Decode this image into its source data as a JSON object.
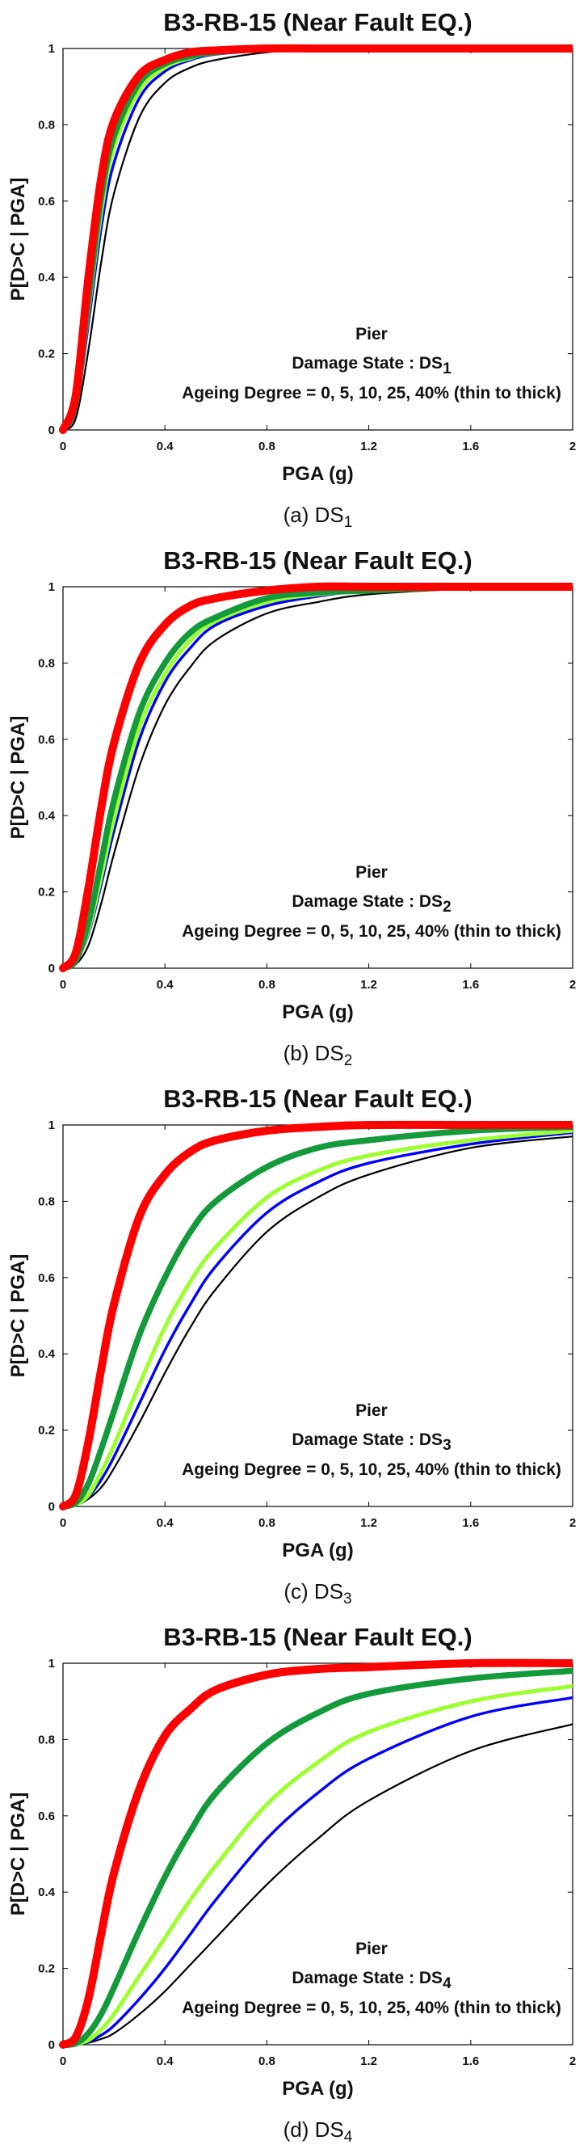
{
  "chart_data": [
    {
      "type": "line",
      "title": "B3-RB-15 (Near Fault EQ.)",
      "xlabel": "PGA (g)",
      "ylabel": "P[D>C | PGA]",
      "xlim": [
        0,
        2
      ],
      "ylim": [
        0,
        1
      ],
      "xticks": [
        "0",
        "0.4",
        "0.8",
        "1.2",
        "1.6",
        "2"
      ],
      "yticks": [
        "0",
        "0.2",
        "0.4",
        "0.6",
        "0.8",
        "1"
      ],
      "annotation": {
        "line1": "Pier",
        "line2": "Damage State : DS",
        "line2_sub": "1",
        "line3": "Ageing Degree = 0, 5, 10, 25, 40% (thin to thick)"
      },
      "caption": {
        "prefix": "(a) DS",
        "sub": "1"
      },
      "x": [
        0,
        0.05,
        0.1,
        0.15,
        0.2,
        0.3,
        0.4,
        0.5,
        0.6,
        0.8,
        1.0,
        1.2,
        1.6,
        2.0
      ],
      "series": [
        {
          "color": "#000000",
          "values": [
            0,
            0.03,
            0.21,
            0.44,
            0.62,
            0.82,
            0.91,
            0.95,
            0.97,
            0.99,
            1.0,
            1.0,
            1.0,
            1.0
          ]
        },
        {
          "color": "#0000ff",
          "values": [
            0,
            0.05,
            0.28,
            0.53,
            0.7,
            0.87,
            0.94,
            0.97,
            0.985,
            0.995,
            1.0,
            1.0,
            1.0,
            1.0
          ]
        },
        {
          "color": "#9cff2e",
          "values": [
            0,
            0.06,
            0.31,
            0.57,
            0.74,
            0.89,
            0.95,
            0.975,
            0.99,
            1.0,
            1.0,
            1.0,
            1.0,
            1.0
          ]
        },
        {
          "color": "#139a3b",
          "values": [
            0,
            0.07,
            0.34,
            0.61,
            0.77,
            0.91,
            0.96,
            0.98,
            0.99,
            1.0,
            1.0,
            1.0,
            1.0,
            1.0
          ]
        },
        {
          "color": "#ff0000",
          "values": [
            0,
            0.09,
            0.4,
            0.66,
            0.81,
            0.93,
            0.97,
            0.99,
            0.995,
            1.0,
            1.0,
            1.0,
            1.0,
            1.0
          ]
        }
      ]
    },
    {
      "type": "line",
      "title": "B3-RB-15 (Near Fault EQ.)",
      "xlabel": "PGA (g)",
      "ylabel": "P[D>C | PGA]",
      "xlim": [
        0,
        2
      ],
      "ylim": [
        0,
        1
      ],
      "xticks": [
        "0",
        "0.4",
        "0.8",
        "1.2",
        "1.6",
        "2"
      ],
      "yticks": [
        "0",
        "0.2",
        "0.4",
        "0.6",
        "0.8",
        "1"
      ],
      "annotation": {
        "line1": "Pier",
        "line2": "Damage State : DS",
        "line2_sub": "2",
        "line3": "Ageing Degree = 0, 5, 10, 25, 40% (thin to thick)"
      },
      "caption": {
        "prefix": "(b) DS",
        "sub": "2"
      },
      "x": [
        0,
        0.05,
        0.1,
        0.15,
        0.2,
        0.3,
        0.4,
        0.5,
        0.6,
        0.8,
        1.0,
        1.2,
        1.6,
        2.0
      ],
      "series": [
        {
          "color": "#000000",
          "values": [
            0,
            0.01,
            0.06,
            0.17,
            0.3,
            0.53,
            0.69,
            0.79,
            0.86,
            0.93,
            0.96,
            0.98,
            0.995,
            1.0
          ]
        },
        {
          "color": "#0000ff",
          "values": [
            0,
            0.02,
            0.09,
            0.22,
            0.36,
            0.6,
            0.75,
            0.84,
            0.9,
            0.95,
            0.975,
            0.99,
            1.0,
            1.0
          ]
        },
        {
          "color": "#9cff2e",
          "values": [
            0,
            0.02,
            0.1,
            0.24,
            0.39,
            0.63,
            0.77,
            0.86,
            0.91,
            0.96,
            0.98,
            0.99,
            1.0,
            1.0
          ]
        },
        {
          "color": "#139a3b",
          "values": [
            0,
            0.02,
            0.12,
            0.28,
            0.44,
            0.67,
            0.8,
            0.88,
            0.92,
            0.97,
            0.985,
            0.99,
            1.0,
            1.0
          ]
        },
        {
          "color": "#ff0000",
          "values": [
            0,
            0.04,
            0.21,
            0.42,
            0.59,
            0.8,
            0.9,
            0.95,
            0.97,
            0.99,
            1.0,
            1.0,
            1.0,
            1.0
          ]
        }
      ]
    },
    {
      "type": "line",
      "title": "B3-RB-15 (Near Fault EQ.)",
      "xlabel": "PGA (g)",
      "ylabel": "P[D>C | PGA]",
      "xlim": [
        0,
        2
      ],
      "ylim": [
        0,
        1
      ],
      "xticks": [
        "0",
        "0.4",
        "0.8",
        "1.2",
        "1.6",
        "2"
      ],
      "yticks": [
        "0",
        "0.2",
        "0.4",
        "0.6",
        "0.8",
        "1"
      ],
      "annotation": {
        "line1": "Pier",
        "line2": "Damage State : DS",
        "line2_sub": "3",
        "line3": "Ageing Degree = 0, 5, 10, 25, 40% (thin to thick)"
      },
      "caption": {
        "prefix": "(c) DS",
        "sub": "3"
      },
      "x": [
        0,
        0.05,
        0.1,
        0.15,
        0.2,
        0.3,
        0.4,
        0.5,
        0.6,
        0.8,
        1.0,
        1.2,
        1.6,
        2.0
      ],
      "series": [
        {
          "color": "#000000",
          "values": [
            0,
            0.003,
            0.02,
            0.05,
            0.1,
            0.22,
            0.35,
            0.47,
            0.57,
            0.72,
            0.81,
            0.87,
            0.94,
            0.97
          ]
        },
        {
          "color": "#0000ff",
          "values": [
            0,
            0.004,
            0.025,
            0.07,
            0.13,
            0.27,
            0.41,
            0.53,
            0.63,
            0.77,
            0.85,
            0.9,
            0.95,
            0.98
          ]
        },
        {
          "color": "#9cff2e",
          "values": [
            0,
            0.005,
            0.03,
            0.09,
            0.16,
            0.32,
            0.47,
            0.59,
            0.68,
            0.81,
            0.88,
            0.92,
            0.96,
            0.985
          ]
        },
        {
          "color": "#139a3b",
          "values": [
            0,
            0.01,
            0.06,
            0.15,
            0.25,
            0.45,
            0.6,
            0.72,
            0.8,
            0.89,
            0.94,
            0.96,
            0.985,
            0.995
          ]
        },
        {
          "color": "#ff0000",
          "values": [
            0,
            0.03,
            0.17,
            0.36,
            0.53,
            0.76,
            0.87,
            0.93,
            0.96,
            0.985,
            0.995,
            1.0,
            1.0,
            1.0
          ]
        }
      ]
    },
    {
      "type": "line",
      "title": "B3-RB-15 (Near Fault EQ.)",
      "xlabel": "PGA (g)",
      "ylabel": "P[D>C | PGA]",
      "xlim": [
        0,
        2
      ],
      "ylim": [
        0,
        1
      ],
      "xticks": [
        "0",
        "0.4",
        "0.8",
        "1.2",
        "1.6",
        "2"
      ],
      "yticks": [
        "0",
        "0.2",
        "0.4",
        "0.6",
        "0.8",
        "1"
      ],
      "annotation": {
        "line1": "Pier",
        "line2": "Damage State : DS",
        "line2_sub": "4",
        "line3": "Ageing Degree = 0, 5, 10, 25, 40% (thin to thick)"
      },
      "caption": {
        "prefix": "(d) DS",
        "sub": "4"
      },
      "x": [
        0,
        0.05,
        0.1,
        0.15,
        0.2,
        0.3,
        0.4,
        0.5,
        0.6,
        0.8,
        1.0,
        1.2,
        1.6,
        2.0
      ],
      "series": [
        {
          "color": "#000000",
          "values": [
            0,
            0.001,
            0.005,
            0.015,
            0.03,
            0.08,
            0.14,
            0.21,
            0.28,
            0.42,
            0.54,
            0.64,
            0.77,
            0.84
          ]
        },
        {
          "color": "#0000ff",
          "values": [
            0,
            0.001,
            0.008,
            0.025,
            0.05,
            0.12,
            0.2,
            0.29,
            0.38,
            0.54,
            0.66,
            0.75,
            0.86,
            0.91
          ]
        },
        {
          "color": "#9cff2e",
          "values": [
            0,
            0.002,
            0.012,
            0.04,
            0.08,
            0.18,
            0.28,
            0.38,
            0.47,
            0.63,
            0.74,
            0.82,
            0.9,
            0.94
          ]
        },
        {
          "color": "#139a3b",
          "values": [
            0,
            0.003,
            0.03,
            0.08,
            0.15,
            0.3,
            0.44,
            0.56,
            0.66,
            0.79,
            0.87,
            0.92,
            0.96,
            0.98
          ]
        },
        {
          "color": "#ff0000",
          "values": [
            0,
            0.02,
            0.12,
            0.29,
            0.45,
            0.67,
            0.81,
            0.88,
            0.93,
            0.97,
            0.985,
            0.99,
            1.0,
            1.0
          ]
        }
      ]
    }
  ]
}
